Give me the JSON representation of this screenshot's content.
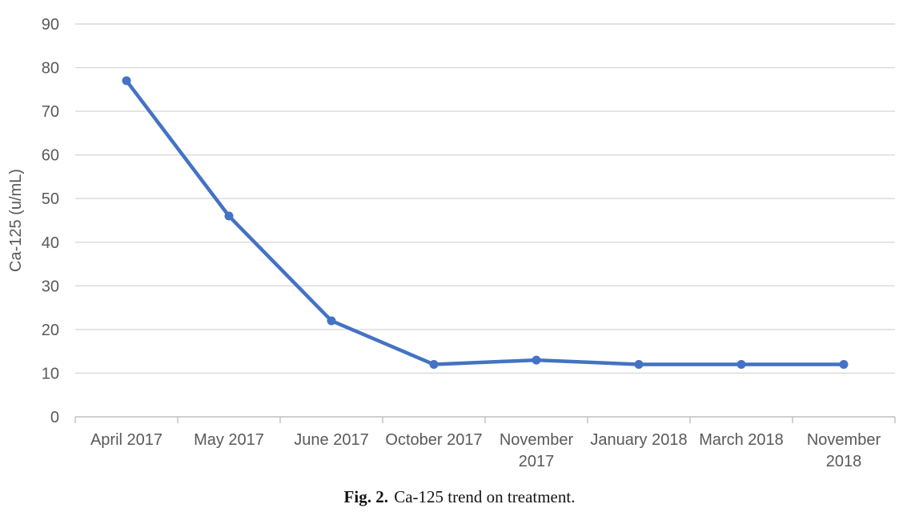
{
  "figure": {
    "caption_label": "Fig. 2.",
    "caption_text": "Ca-125 trend on treatment."
  },
  "chart_data": {
    "type": "line",
    "title": "",
    "categories": [
      "April 2017",
      "May 2017",
      "June 2017",
      "October 2017",
      "November 2017",
      "January 2018",
      "March 2018",
      "November 2018"
    ],
    "values": [
      77,
      46,
      22,
      12,
      13,
      12,
      12,
      12
    ],
    "series_count": 1,
    "xlabel": "",
    "ylabel": "Ca-125 (u/mL)",
    "ylim": [
      0,
      90
    ],
    "yticks": [
      0,
      10,
      20,
      30,
      40,
      50,
      60,
      70,
      80,
      90
    ],
    "grid": true,
    "legend": "none",
    "marker": "circle",
    "colors": {
      "line": "#4472C4",
      "marker": "#4472C4",
      "axis_text": "#595959",
      "gridline": "#D9D9D9",
      "axis_line": "#BFBFBF"
    }
  }
}
